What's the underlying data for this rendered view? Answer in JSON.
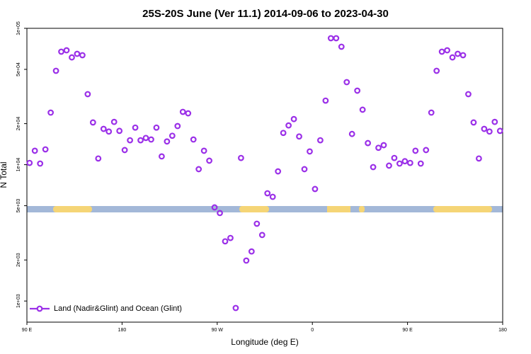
{
  "chart_data": {
    "type": "scatter",
    "title": "25S-20S June (Ver 11.1)   2014-09-06 to 2023-04-30",
    "x_label": "Longitude (deg E)",
    "y_label": "N Total",
    "log_y": true,
    "grid": false,
    "legend": "bottom-left",
    "xlim": [
      90,
      540
    ],
    "ylim": [
      700,
      100000
    ],
    "xticks": [
      {
        "value": 90,
        "label": "90 E"
      },
      180,
      {
        "value": 270,
        "label": "90 W"
      },
      {
        "value": 360,
        "label": "0"
      },
      {
        "value": 450,
        "label": "90 E"
      },
      {
        "value": 540,
        "label": "180"
      }
    ],
    "yticks": [
      {
        "value": 100000,
        "label": "1e+05"
      },
      {
        "value": 50000,
        "label": "5e+04"
      },
      {
        "value": 20000,
        "label": "2e+04"
      },
      {
        "value": 10000,
        "label": "1e+04"
      },
      {
        "value": 5000,
        "label": "5e+03"
      },
      {
        "value": 2000,
        "label": "2e+03"
      },
      {
        "value": 1000,
        "label": "1e+03"
      }
    ],
    "x": [
      92.5,
      97.5,
      102.5,
      107.5,
      112.5,
      117.5,
      122.5,
      127.5,
      132.5,
      137.5,
      142.5,
      147.5,
      152.5,
      157.5,
      162.5,
      167.5,
      172.5,
      177.5,
      182.5,
      187.5,
      192.5,
      197.5,
      202.5,
      207.5,
      212.5,
      217.5,
      222.5,
      227.5,
      232.5,
      237.5,
      242.5,
      247.5,
      252.5,
      257.5,
      262.5,
      267.5,
      272.5,
      277.5,
      282.5,
      287.5,
      292.5,
      297.5,
      302.5,
      307.5,
      312.5,
      317.5,
      322.5,
      327.5,
      332.5,
      337.5,
      342.5,
      347.5,
      352.5,
      357.5,
      362.5,
      367.5,
      372.5,
      377.5,
      382.5,
      387.5,
      392.5,
      397.5,
      402.5,
      407.5,
      412.5,
      417.5,
      422.5,
      427.5,
      432.5,
      437.5,
      442.5,
      447.5,
      452.5,
      457.5,
      462.5,
      467.5,
      472.5,
      477.5,
      482.5,
      487.5,
      492.5,
      497.5,
      502.5,
      507.5,
      512.5,
      517.5,
      522.5,
      527.5,
      532.5,
      537.5
    ],
    "series": [
      {
        "name": "Land (Nadir&Glint) and Ocean (Glint)",
        "color": "#9b30e8",
        "values": [
          10300,
          12650,
          10190,
          12950,
          24100,
          48800,
          67400,
          69000,
          61200,
          65000,
          63500,
          32900,
          20400,
          11100,
          18300,
          17500,
          20600,
          17700,
          12800,
          15100,
          18700,
          15100,
          15700,
          15300,
          18700,
          11500,
          14800,
          16300,
          19200,
          24400,
          23800,
          15300,
          9270,
          12650,
          10700,
          4860,
          4420,
          2740,
          2900,
          889,
          11200,
          1980,
          2310,
          3690,
          3050,
          6170,
          5810,
          8930,
          17100,
          19400,
          21600,
          16100,
          9270,
          12500,
          6630,
          15100,
          29500,
          84600,
          84600,
          73300,
          40300,
          16800,
          34900,
          25300,
          14400,
          9600,
          13300,
          13900,
          9840,
          11200,
          10190,
          10600,
          10300,
          12650,
          10190,
          12800,
          24100,
          48800,
          67400,
          69000,
          61200,
          65000,
          63500,
          32900,
          20400,
          11100,
          18300,
          17500,
          20600,
          17700
        ]
      }
    ]
  }
}
